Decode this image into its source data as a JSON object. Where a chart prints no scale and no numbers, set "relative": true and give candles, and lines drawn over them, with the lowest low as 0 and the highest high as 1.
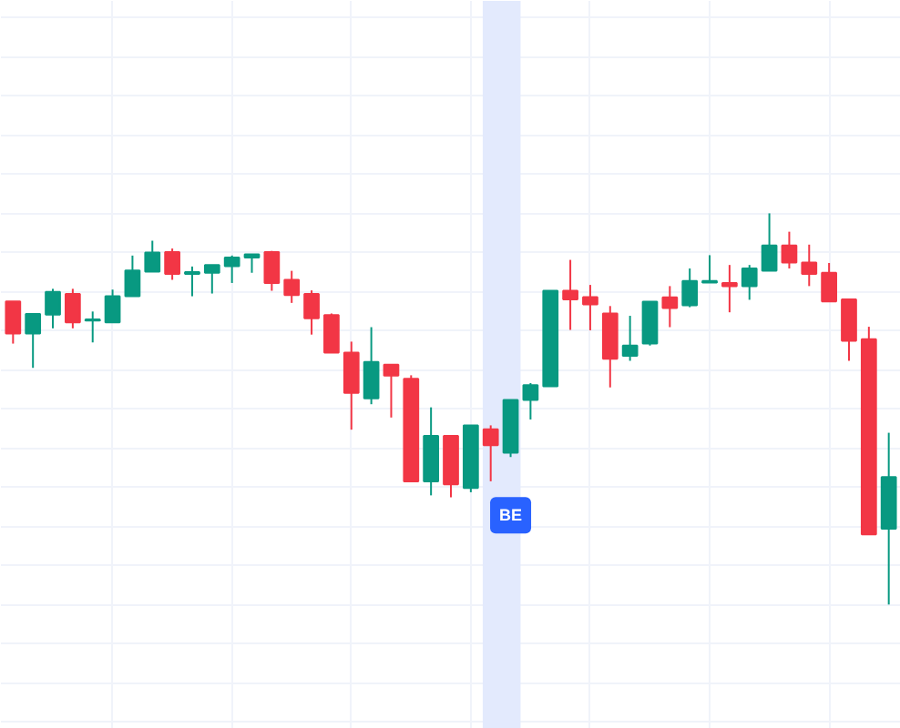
{
  "chart_data": {
    "type": "candlestick",
    "relative": true,
    "grid": true,
    "categories": [
      null,
      null,
      null,
      null,
      null,
      null,
      null,
      null,
      null,
      null,
      null,
      null,
      null,
      null,
      null,
      null,
      null,
      null,
      null,
      null,
      null,
      null,
      null,
      null,
      null,
      null,
      null,
      null,
      null,
      null,
      null,
      null,
      null,
      null,
      null,
      null,
      null,
      null,
      null,
      null,
      null,
      null,
      null,
      null,
      null
    ],
    "ohlc": [
      [
        0.775,
        0.775,
        0.667,
        0.693
      ],
      [
        0.693,
        0.743,
        0.605,
        0.743
      ],
      [
        0.741,
        0.807,
        0.706,
        0.799
      ],
      [
        0.794,
        0.807,
        0.706,
        0.721
      ],
      [
        0.726,
        0.749,
        0.67,
        0.729
      ],
      [
        0.721,
        0.805,
        0.721,
        0.788
      ],
      [
        0.788,
        0.892,
        0.788,
        0.854
      ],
      [
        0.851,
        0.93,
        0.851,
        0.9
      ],
      [
        0.901,
        0.91,
        0.83,
        0.845
      ],
      [
        0.845,
        0.864,
        0.788,
        0.85
      ],
      [
        0.848,
        0.868,
        0.795,
        0.868
      ],
      [
        0.865,
        0.892,
        0.822,
        0.887
      ],
      [
        0.887,
        0.896,
        0.848,
        0.895
      ],
      [
        0.901,
        0.904,
        0.802,
        0.822
      ],
      [
        0.83,
        0.853,
        0.771,
        0.791
      ],
      [
        0.794,
        0.803,
        0.69,
        0.732
      ],
      [
        0.74,
        0.744,
        0.644,
        0.644
      ],
      [
        0.644,
        0.672,
        0.447,
        0.541
      ],
      [
        0.527,
        0.709,
        0.512,
        0.62
      ],
      [
        0.613,
        0.613,
        0.478,
        0.585
      ],
      [
        0.577,
        0.586,
        0.315,
        0.315
      ],
      [
        0.315,
        0.504,
        0.279,
        0.431
      ],
      [
        0.431,
        0.431,
        0.274,
        0.307
      ],
      [
        0.298,
        0.458,
        0.287,
        0.458
      ],
      [
        0.448,
        0.458,
        0.315,
        0.407
      ],
      [
        0.388,
        0.523,
        0.377,
        0.523
      ],
      [
        0.523,
        0.566,
        0.473,
        0.561
      ],
      [
        0.558,
        0.802,
        0.558,
        0.802
      ],
      [
        0.802,
        0.881,
        0.702,
        0.78
      ],
      [
        0.786,
        0.817,
        0.701,
        0.767
      ],
      [
        0.744,
        0.763,
        0.555,
        0.628
      ],
      [
        0.636,
        0.738,
        0.623,
        0.662
      ],
      [
        0.667,
        0.774,
        0.662,
        0.774
      ],
      [
        0.785,
        0.814,
        0.709,
        0.758
      ],
      [
        0.765,
        0.859,
        0.76,
        0.827
      ],
      [
        0.823,
        0.893,
        0.823,
        0.827
      ],
      [
        0.822,
        0.868,
        0.747,
        0.814
      ],
      [
        0.814,
        0.868,
        0.779,
        0.859
      ],
      [
        0.853,
        1.0,
        0.853,
        0.918
      ],
      [
        0.918,
        0.953,
        0.859,
        0.874
      ],
      [
        0.874,
        0.92,
        0.814,
        0.845
      ],
      [
        0.848,
        0.873,
        0.775,
        0.775
      ],
      [
        0.78,
        0.78,
        0.623,
        0.674
      ],
      [
        0.678,
        0.71,
        0.179,
        0.179
      ],
      [
        0.194,
        0.439,
        0.0,
        0.326
      ]
    ],
    "colors": [
      "#f23645",
      "#089981",
      "#089981",
      "#f23645",
      "#089981",
      "#089981",
      "#089981",
      "#089981",
      "#f23645",
      "#089981",
      "#089981",
      "#089981",
      "#089981",
      "#f23645",
      "#f23645",
      "#f23645",
      "#f23645",
      "#f23645",
      "#089981",
      "#f23645",
      "#f23645",
      "#089981",
      "#f23645",
      "#089981",
      "#f23645",
      "#089981",
      "#089981",
      "#089981",
      "#f23645",
      "#f23645",
      "#f23645",
      "#089981",
      "#089981",
      "#f23645",
      "#089981",
      "#089981",
      "#f23645",
      "#089981",
      "#089981",
      "#f23645",
      "#f23645",
      "#f23645",
      "#f23645",
      "#f23645",
      "#089981"
    ],
    "annotations": [
      "BE"
    ]
  }
}
